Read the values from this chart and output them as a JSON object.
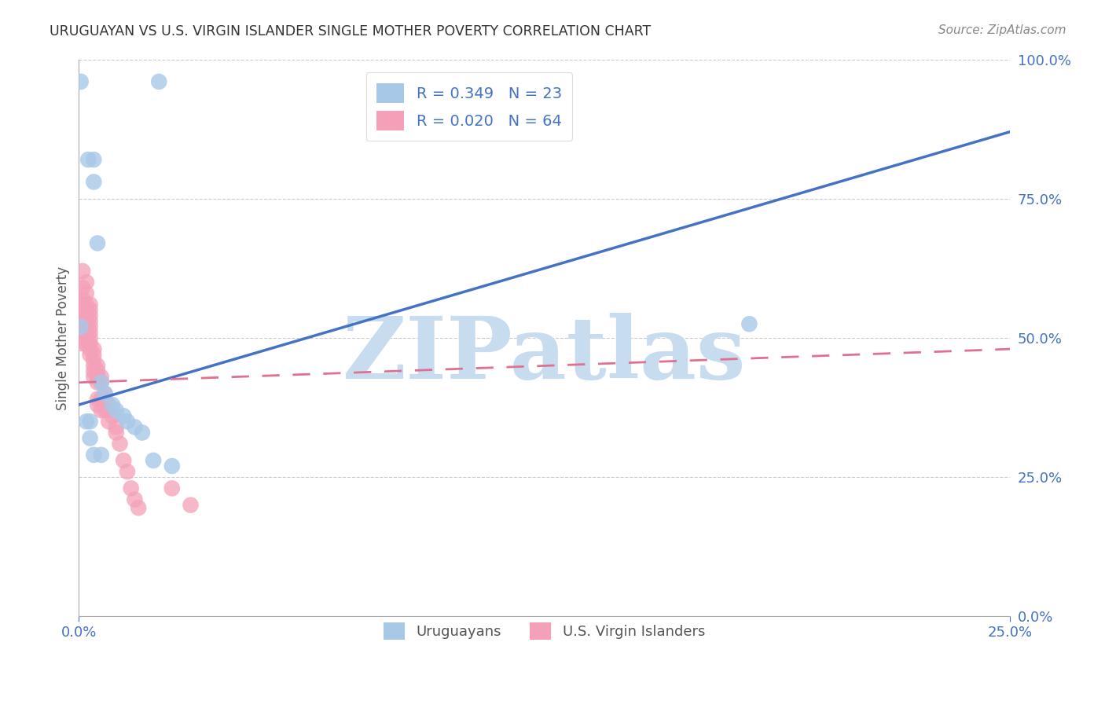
{
  "title": "URUGUAYAN VS U.S. VIRGIN ISLANDER SINGLE MOTHER POVERTY CORRELATION CHART",
  "source": "Source: ZipAtlas.com",
  "ylabel": "Single Mother Poverty",
  "xlim": [
    0.0,
    0.25
  ],
  "ylim": [
    0.0,
    1.0
  ],
  "xtick_positions": [
    0.0,
    0.25
  ],
  "xtick_labels": [
    "0.0%",
    "25.0%"
  ],
  "ytick_positions": [
    0.0,
    0.25,
    0.5,
    0.75,
    1.0
  ],
  "ytick_labels": [
    "0.0%",
    "25.0%",
    "50.0%",
    "75.0%",
    "100.0%"
  ],
  "uruguayan_color": "#A8C8E8",
  "virgin_islander_color": "#F4A0B8",
  "uruguayan_line_color": "#4472C4",
  "virgin_islander_line_color": "#E07090",
  "R_uruguayan": 0.349,
  "N_uruguayan": 23,
  "R_virgin_islander": 0.02,
  "N_virgin_islander": 64,
  "watermark": "ZIPatlas",
  "watermark_color": "#C8DCF0",
  "uruguayan_x": [
    0.0215,
    0.0005,
    0.0025,
    0.004,
    0.004,
    0.005,
    0.006,
    0.007,
    0.009,
    0.01,
    0.012,
    0.013,
    0.015,
    0.017,
    0.02,
    0.025,
    0.0005,
    0.002,
    0.003,
    0.003,
    0.004,
    0.006,
    0.18
  ],
  "uruguayan_y": [
    0.96,
    0.96,
    0.82,
    0.82,
    0.78,
    0.67,
    0.42,
    0.4,
    0.38,
    0.37,
    0.36,
    0.35,
    0.34,
    0.33,
    0.28,
    0.27,
    0.52,
    0.35,
    0.35,
    0.32,
    0.29,
    0.29,
    0.525
  ],
  "virgin_islander_x": [
    0.001,
    0.001,
    0.001,
    0.001,
    0.001,
    0.001,
    0.001,
    0.001,
    0.001,
    0.001,
    0.001,
    0.002,
    0.002,
    0.002,
    0.002,
    0.002,
    0.002,
    0.002,
    0.002,
    0.002,
    0.002,
    0.003,
    0.003,
    0.003,
    0.003,
    0.003,
    0.003,
    0.003,
    0.003,
    0.003,
    0.003,
    0.004,
    0.004,
    0.004,
    0.004,
    0.004,
    0.004,
    0.005,
    0.005,
    0.005,
    0.005,
    0.005,
    0.005,
    0.006,
    0.006,
    0.006,
    0.006,
    0.007,
    0.007,
    0.007,
    0.008,
    0.008,
    0.008,
    0.009,
    0.01,
    0.01,
    0.011,
    0.012,
    0.013,
    0.014,
    0.015,
    0.016,
    0.025,
    0.03
  ],
  "virgin_islander_y": [
    0.62,
    0.59,
    0.57,
    0.56,
    0.55,
    0.54,
    0.53,
    0.52,
    0.51,
    0.5,
    0.49,
    0.6,
    0.58,
    0.56,
    0.55,
    0.54,
    0.53,
    0.52,
    0.51,
    0.5,
    0.49,
    0.56,
    0.55,
    0.54,
    0.53,
    0.52,
    0.51,
    0.5,
    0.49,
    0.48,
    0.47,
    0.48,
    0.47,
    0.46,
    0.45,
    0.44,
    0.43,
    0.45,
    0.44,
    0.43,
    0.42,
    0.39,
    0.38,
    0.43,
    0.42,
    0.39,
    0.37,
    0.4,
    0.39,
    0.37,
    0.38,
    0.37,
    0.35,
    0.36,
    0.34,
    0.33,
    0.31,
    0.28,
    0.26,
    0.23,
    0.21,
    0.195,
    0.23,
    0.2
  ],
  "trend_uru_x0": 0.0,
  "trend_uru_y0": 0.38,
  "trend_uru_x1": 0.25,
  "trend_uru_y1": 0.87,
  "trend_vi_x0": 0.0,
  "trend_vi_y0": 0.42,
  "trend_vi_x1": 0.25,
  "trend_vi_y1": 0.48
}
